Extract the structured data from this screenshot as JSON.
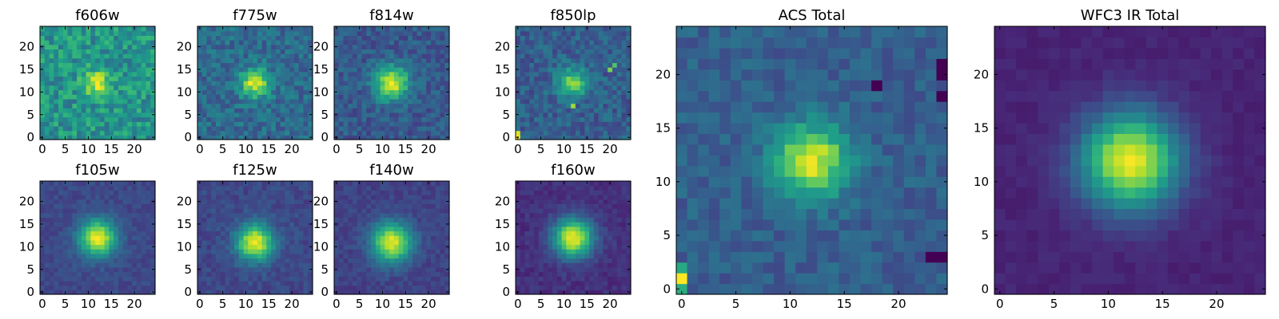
{
  "figure": {
    "description_panels": 10,
    "colormap": "viridis"
  },
  "chart_data": [
    {
      "type": "heatmap",
      "title": "f606w",
      "grid_size": 25,
      "xlim": [
        0,
        24
      ],
      "ylim": [
        0,
        24
      ],
      "xticks": [
        0,
        5,
        10,
        15,
        20
      ],
      "yticks": [
        0,
        5,
        10,
        15,
        20
      ],
      "source": {
        "cx": 12,
        "cy": 12,
        "sigma": 2.0,
        "peak": 0.93,
        "background": 0.52,
        "noise": 0.32,
        "seed": 11
      },
      "hot_pixels": [],
      "dark_pixels": []
    },
    {
      "type": "heatmap",
      "title": "f775w",
      "grid_size": 25,
      "xlim": [
        0,
        24
      ],
      "ylim": [
        0,
        24
      ],
      "xticks": [
        0,
        5,
        10,
        15,
        20
      ],
      "yticks": [
        0,
        5,
        10,
        15,
        20
      ],
      "source": {
        "cx": 12,
        "cy": 12,
        "sigma": 2.2,
        "peak": 0.95,
        "background": 0.35,
        "noise": 0.24,
        "seed": 23
      },
      "hot_pixels": [],
      "dark_pixels": []
    },
    {
      "type": "heatmap",
      "title": "f814w",
      "grid_size": 25,
      "xlim": [
        0,
        24
      ],
      "ylim": [
        0,
        24
      ],
      "xticks": [
        0,
        5,
        10,
        15,
        20
      ],
      "yticks": [
        0,
        5,
        10,
        15,
        20
      ],
      "source": {
        "cx": 12,
        "cy": 12,
        "sigma": 2.6,
        "peak": 0.95,
        "background": 0.28,
        "noise": 0.2,
        "seed": 37
      },
      "hot_pixels": [],
      "dark_pixels": []
    },
    {
      "type": "heatmap",
      "title": "f850lp",
      "grid_size": 25,
      "xlim": [
        0,
        24
      ],
      "ylim": [
        0,
        24
      ],
      "xticks": [
        0,
        5,
        10,
        15,
        20
      ],
      "yticks": [
        0,
        5,
        10,
        15,
        20
      ],
      "source": {
        "cx": 12,
        "cy": 12,
        "sigma": 2.3,
        "peak": 0.8,
        "background": 0.3,
        "noise": 0.22,
        "seed": 51
      },
      "hot_pixels": [
        [
          0,
          0,
          1.0
        ],
        [
          0,
          1,
          0.95
        ],
        [
          20,
          15,
          0.8
        ],
        [
          21,
          16,
          0.72
        ],
        [
          12,
          7,
          0.85
        ]
      ],
      "dark_pixels": []
    },
    {
      "type": "heatmap",
      "title": "f105w",
      "grid_size": 25,
      "xlim": [
        0,
        24
      ],
      "ylim": [
        0,
        24
      ],
      "xticks": [
        0,
        5,
        10,
        15,
        20
      ],
      "yticks": [
        0,
        5,
        10,
        15,
        20
      ],
      "source": {
        "cx": 12,
        "cy": 12,
        "sigma": 2.8,
        "peak": 0.98,
        "background": 0.22,
        "noise": 0.1,
        "seed": 67
      },
      "hot_pixels": [],
      "dark_pixels": []
    },
    {
      "type": "heatmap",
      "title": "f125w",
      "grid_size": 25,
      "xlim": [
        0,
        24
      ],
      "ylim": [
        0,
        24
      ],
      "xticks": [
        0,
        5,
        10,
        15,
        20
      ],
      "yticks": [
        0,
        5,
        10,
        15,
        20
      ],
      "source": {
        "cx": 12,
        "cy": 11,
        "sigma": 2.8,
        "peak": 0.98,
        "background": 0.22,
        "noise": 0.12,
        "seed": 79
      },
      "hot_pixels": [],
      "dark_pixels": []
    },
    {
      "type": "heatmap",
      "title": "f140w",
      "grid_size": 25,
      "xlim": [
        0,
        24
      ],
      "ylim": [
        0,
        24
      ],
      "xticks": [
        0,
        5,
        10,
        15,
        20
      ],
      "yticks": [
        0,
        5,
        10,
        15,
        20
      ],
      "source": {
        "cx": 12,
        "cy": 11,
        "sigma": 3.0,
        "peak": 0.96,
        "background": 0.2,
        "noise": 0.1,
        "seed": 97
      },
      "hot_pixels": [],
      "dark_pixels": []
    },
    {
      "type": "heatmap",
      "title": "f160w",
      "grid_size": 25,
      "xlim": [
        0,
        24
      ],
      "ylim": [
        0,
        24
      ],
      "xticks": [
        0,
        5,
        10,
        15,
        20
      ],
      "yticks": [
        0,
        5,
        10,
        15,
        20
      ],
      "source": {
        "cx": 12,
        "cy": 12,
        "sigma": 3.0,
        "peak": 0.98,
        "background": 0.14,
        "noise": 0.1,
        "seed": 113
      },
      "hot_pixels": [],
      "dark_pixels": []
    },
    {
      "type": "heatmap",
      "title": "ACS Total",
      "grid_size": 25,
      "xlim": [
        0,
        24
      ],
      "ylim": [
        0,
        24
      ],
      "xticks": [
        0,
        5,
        10,
        15,
        20
      ],
      "yticks": [
        0,
        5,
        10,
        15,
        20
      ],
      "source": {
        "cx": 12,
        "cy": 12,
        "sigma": 2.4,
        "peak": 0.95,
        "background": 0.3,
        "noise": 0.16,
        "seed": 131
      },
      "hot_pixels": [
        [
          0,
          0,
          0.62
        ],
        [
          0,
          1,
          1.0
        ],
        [
          0,
          2,
          0.6
        ]
      ],
      "dark_pixels": [
        [
          18,
          19
        ],
        [
          24,
          18
        ],
        [
          24,
          20
        ],
        [
          24,
          21
        ],
        [
          24,
          3
        ],
        [
          23,
          3
        ]
      ]
    },
    {
      "type": "heatmap",
      "title": "WFC3 IR Total",
      "grid_size": 25,
      "xlim": [
        0,
        24
      ],
      "ylim": [
        0,
        24
      ],
      "xticks": [
        0,
        5,
        10,
        15,
        20
      ],
      "yticks": [
        0,
        5,
        10,
        15,
        20
      ],
      "source": {
        "cx": 12,
        "cy": 12,
        "sigma": 3.1,
        "peak": 0.98,
        "background": 0.1,
        "noise": 0.05,
        "seed": 151
      },
      "hot_pixels": [],
      "dark_pixels": []
    }
  ]
}
